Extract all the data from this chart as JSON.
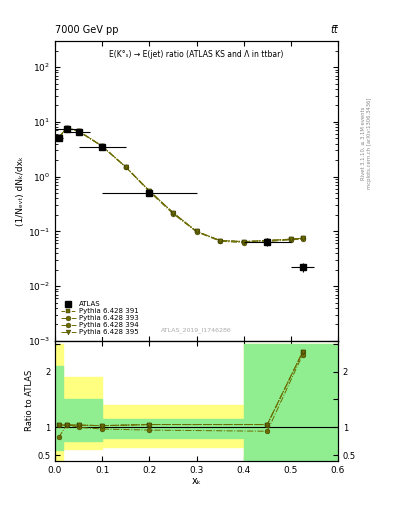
{
  "title_left": "7000 GeV pp",
  "title_right": "tt̅",
  "annotation": "E(K°ₛ) → E(jet) ratio (ATLAS KS and Λ in ttbar)",
  "mcplots_label": "mcplots.cern.ch [arXiv:1306.3436]",
  "rivet_label": "Rivet 3.1.10, ≥ 3.1M events",
  "watermark": "ATLAS_2019_I1746286",
  "ylabel_main": "(1/Nₑᵥₜ) dNₖ/dxₖ",
  "ylabel_ratio": "Ratio to ATLAS",
  "xlabel": "xₖ",
  "xlim": [
    0.0,
    0.6
  ],
  "ylim_main": [
    0.001,
    300
  ],
  "ylim_ratio": [
    0.4,
    2.55
  ],
  "atlas_x": [
    0.008,
    0.025,
    0.05,
    0.1,
    0.2,
    0.45,
    0.525
  ],
  "atlas_y": [
    5.0,
    7.5,
    6.5,
    3.5,
    0.5,
    0.065,
    0.022
  ],
  "atlas_xerr": [
    0.008,
    0.025,
    0.025,
    0.05,
    0.1,
    0.05,
    0.025
  ],
  "atlas_yerr": [
    0.5,
    0.5,
    0.5,
    0.3,
    0.05,
    0.012,
    0.004
  ],
  "mc_x": [
    0.008,
    0.025,
    0.05,
    0.1,
    0.15,
    0.2,
    0.25,
    0.3,
    0.35,
    0.4,
    0.45,
    0.5,
    0.525
  ],
  "mc_391_y": [
    5.2,
    7.8,
    6.8,
    3.6,
    1.5,
    0.55,
    0.22,
    0.1,
    0.068,
    0.065,
    0.068,
    0.072,
    0.075
  ],
  "mc_393_y": [
    5.2,
    7.8,
    6.8,
    3.6,
    1.5,
    0.55,
    0.22,
    0.1,
    0.068,
    0.065,
    0.068,
    0.072,
    0.075
  ],
  "mc_394_y": [
    5.0,
    7.6,
    6.7,
    3.55,
    1.48,
    0.53,
    0.21,
    0.098,
    0.066,
    0.062,
    0.065,
    0.07,
    0.072
  ],
  "mc_395_y": [
    5.2,
    7.8,
    6.8,
    3.6,
    1.5,
    0.55,
    0.22,
    0.1,
    0.068,
    0.065,
    0.068,
    0.072,
    0.075
  ],
  "ratio_x": [
    0.008,
    0.025,
    0.05,
    0.1,
    0.2,
    0.45,
    0.525
  ],
  "ratio_391_y": [
    1.04,
    1.04,
    1.04,
    1.03,
    1.05,
    1.05,
    2.35
  ],
  "ratio_393_y": [
    1.04,
    1.04,
    1.04,
    1.03,
    1.05,
    1.05,
    2.35
  ],
  "ratio_394_y": [
    0.82,
    1.05,
    1.0,
    0.97,
    0.95,
    0.93,
    2.3
  ],
  "ratio_395_y": [
    1.04,
    1.04,
    1.04,
    1.03,
    1.05,
    1.05,
    2.35
  ],
  "band1_edges": [
    0.0,
    0.016,
    0.1,
    0.4,
    0.6
  ],
  "band1_lo": [
    0.42,
    0.62,
    0.65,
    0.4,
    0.4
  ],
  "band1_hi": [
    2.5,
    1.9,
    1.4,
    2.5,
    2.5
  ],
  "band2_edges": [
    0.0,
    0.016,
    0.1,
    0.4,
    0.6
  ],
  "band2_lo": [
    0.6,
    0.75,
    0.8,
    0.4,
    0.4
  ],
  "band2_hi": [
    2.1,
    1.5,
    1.15,
    2.5,
    2.5
  ],
  "color_atlas": "#000000",
  "color_mc": "#6b6b00",
  "color_391": "#a0522d",
  "color_393": "#8b6914",
  "color_394": "#4d5a00",
  "color_395": "#2d6b2d",
  "color_yellow": "#ffff80",
  "color_green": "#90ee90",
  "legend_entries": [
    "ATLAS",
    "Pythia 6.428 391",
    "Pythia 6.428 393",
    "Pythia 6.428 394",
    "Pythia 6.428 395"
  ]
}
